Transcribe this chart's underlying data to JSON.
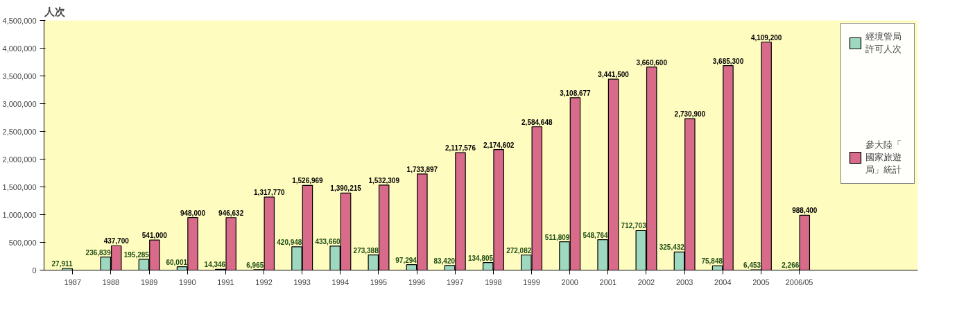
{
  "chart_data": {
    "type": "bar",
    "ylabel": "人次",
    "categories": [
      "1987",
      "1988",
      "1989",
      "1990",
      "1991",
      "1992",
      "1993",
      "1994",
      "1995",
      "1996",
      "1997",
      "1998",
      "1999",
      "2000",
      "2001",
      "2002",
      "2003",
      "2004",
      "2005",
      "2006/05"
    ],
    "series": [
      {
        "name": "經境管局許可人次",
        "color": "#9fd8c0",
        "values": [
          27911,
          236839,
          195285,
          60001,
          14346,
          6965,
          420948,
          433660,
          273388,
          97294,
          83420,
          134805,
          272082,
          511809,
          548764,
          712703,
          325432,
          75848,
          6453,
          2266
        ],
        "value_labels": [
          "27,911",
          "236,839",
          "195,285",
          "60,001",
          "14,346",
          "6,965",
          "420,948",
          "433,660",
          "273,388",
          "97,294",
          "83,420",
          "134,805",
          "272,082",
          "511,809",
          "548,764",
          "712,703",
          "325,432",
          "75,848",
          "6,453",
          "2,266"
        ]
      },
      {
        "name": "參大陸「國家旅遊局」統計",
        "color": "#d86a8a",
        "values": [
          null,
          437700,
          541000,
          948000,
          946632,
          1317770,
          1526969,
          1390215,
          1532309,
          1733897,
          2117576,
          2174602,
          2584648,
          3108677,
          3441500,
          3660600,
          2730900,
          3685300,
          4109200,
          988400
        ],
        "value_labels": [
          null,
          "437,700",
          "541,000",
          "948,000",
          "946,632",
          "1,317,770",
          "1,526,969",
          "1,390,215",
          "1,532,309",
          "1,733,897",
          "2,117,576",
          "2,174,602",
          "2,584,648",
          "3,108,677",
          "3,441,500",
          "3,660,600",
          "2,730,900",
          "3,685,300",
          "4,109,200",
          "988,400"
        ]
      }
    ],
    "ylim": [
      0,
      4500000
    ],
    "yticks": [
      {
        "value": 0,
        "label": "0"
      },
      {
        "value": 500000,
        "label": "500,000"
      },
      {
        "value": 1000000,
        "label": "1,000,000"
      },
      {
        "value": 1500000,
        "label": "1,500,000"
      },
      {
        "value": 2000000,
        "label": "2,000,000"
      },
      {
        "value": 2500000,
        "label": "2,500,000"
      },
      {
        "value": 3000000,
        "label": "3,000,000"
      },
      {
        "value": 3500000,
        "label": "3,500,000"
      },
      {
        "value": 4000000,
        "label": "4,000,000"
      },
      {
        "value": 4500000,
        "label": "4,500,000"
      }
    ],
    "grid": false,
    "legend": "right"
  }
}
